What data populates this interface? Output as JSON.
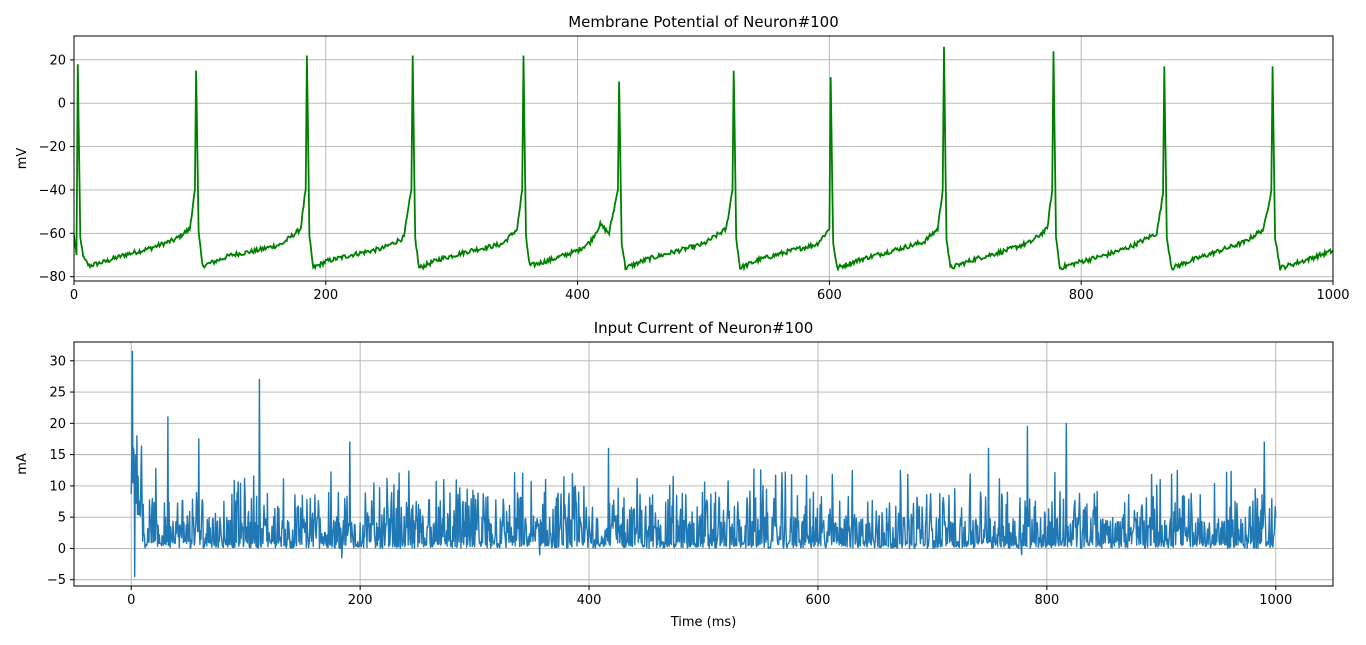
{
  "chart_data": [
    {
      "type": "line",
      "title": "Membrane Potential of Neuron#100",
      "xlabel": "",
      "ylabel": "mV",
      "xlim": [
        0,
        1000
      ],
      "ylim": [
        -82,
        31
      ],
      "xticks": [
        0,
        200,
        400,
        600,
        800,
        1000
      ],
      "yticks": [
        -80,
        -60,
        -40,
        -20,
        0,
        20
      ],
      "grid": true,
      "line_color": "#008000",
      "series": [
        {
          "values_description": "noisy membrane trace",
          "x": [
            0,
            2,
            3,
            5,
            8,
            12,
            25,
            40,
            60,
            80,
            92,
            96,
            97,
            99,
            102,
            112,
            125,
            145,
            165,
            180,
            184,
            185,
            187,
            190,
            200,
            220,
            245,
            262,
            268,
            269,
            271,
            274,
            290,
            315,
            340,
            352,
            356,
            357,
            359,
            362,
            380,
            400,
            410,
            418,
            425,
            432,
            433,
            435,
            438,
            455,
            480,
            500,
            518,
            523,
            524,
            526,
            529,
            545,
            570,
            590,
            600,
            601,
            603,
            606,
            625,
            650,
            675,
            686,
            690,
            691,
            693,
            696,
            715,
            740,
            760,
            773,
            777,
            778,
            780,
            783,
            800,
            820,
            840,
            860,
            865,
            866,
            868,
            872,
            890,
            910,
            930,
            945,
            951,
            952,
            954,
            958,
            975,
            1000
          ],
          "y": [
            -61,
            -70,
            18,
            -63,
            -72,
            -75,
            -73,
            -70,
            -67,
            -63,
            -58,
            -40,
            15,
            -60,
            -75,
            -73,
            -70,
            -68,
            -65,
            -58,
            -40,
            22,
            -62,
            -76,
            -73,
            -70,
            -67,
            -62,
            -40,
            22,
            -62,
            -76,
            -72,
            -68,
            -65,
            -58,
            -40,
            22,
            -62,
            -75,
            -72,
            -68,
            -64,
            -56,
            -60,
            -40,
            10,
            -64,
            -76,
            -72,
            -68,
            -65,
            -58,
            -40,
            15,
            -62,
            -76,
            -72,
            -68,
            -65,
            -58,
            12,
            -64,
            -76,
            -72,
            -68,
            -64,
            -58,
            -40,
            26,
            -62,
            -76,
            -72,
            -68,
            -64,
            -58,
            -40,
            24,
            -62,
            -76,
            -73,
            -70,
            -66,
            -60,
            -42,
            17,
            -62,
            -76,
            -72,
            -68,
            -64,
            -58,
            -40,
            17,
            -62,
            -76,
            -73,
            -68
          ]
        }
      ]
    },
    {
      "type": "line",
      "title": "Input Current of Neuron#100",
      "xlabel": "Time (ms)",
      "ylabel": "mA",
      "xlim": [
        -50,
        1050
      ],
      "ylim": [
        -6,
        33
      ],
      "xticks": [
        0,
        200,
        400,
        600,
        800,
        1000
      ],
      "yticks": [
        -5,
        0,
        5,
        10,
        15,
        20,
        25,
        30
      ],
      "grid": true,
      "line_color": "#1f77b4",
      "series": [
        {
          "x_range": [
            0,
            1000
          ],
          "peaks": [
            {
              "x": 1,
              "y": 31.5
            },
            {
              "x": 3,
              "y": -4.5
            },
            {
              "x": 5,
              "y": 18
            },
            {
              "x": 32,
              "y": 21
            },
            {
              "x": 59,
              "y": 17.5
            },
            {
              "x": 112,
              "y": 27
            },
            {
              "x": 184,
              "y": -1.5
            },
            {
              "x": 191,
              "y": 17
            },
            {
              "x": 357,
              "y": -1
            },
            {
              "x": 417,
              "y": 16
            },
            {
              "x": 749,
              "y": 16
            },
            {
              "x": 778,
              "y": -1
            },
            {
              "x": 783,
              "y": 19.5
            },
            {
              "x": 817,
              "y": 20
            },
            {
              "x": 990,
              "y": 17
            }
          ]
        }
      ]
    }
  ]
}
